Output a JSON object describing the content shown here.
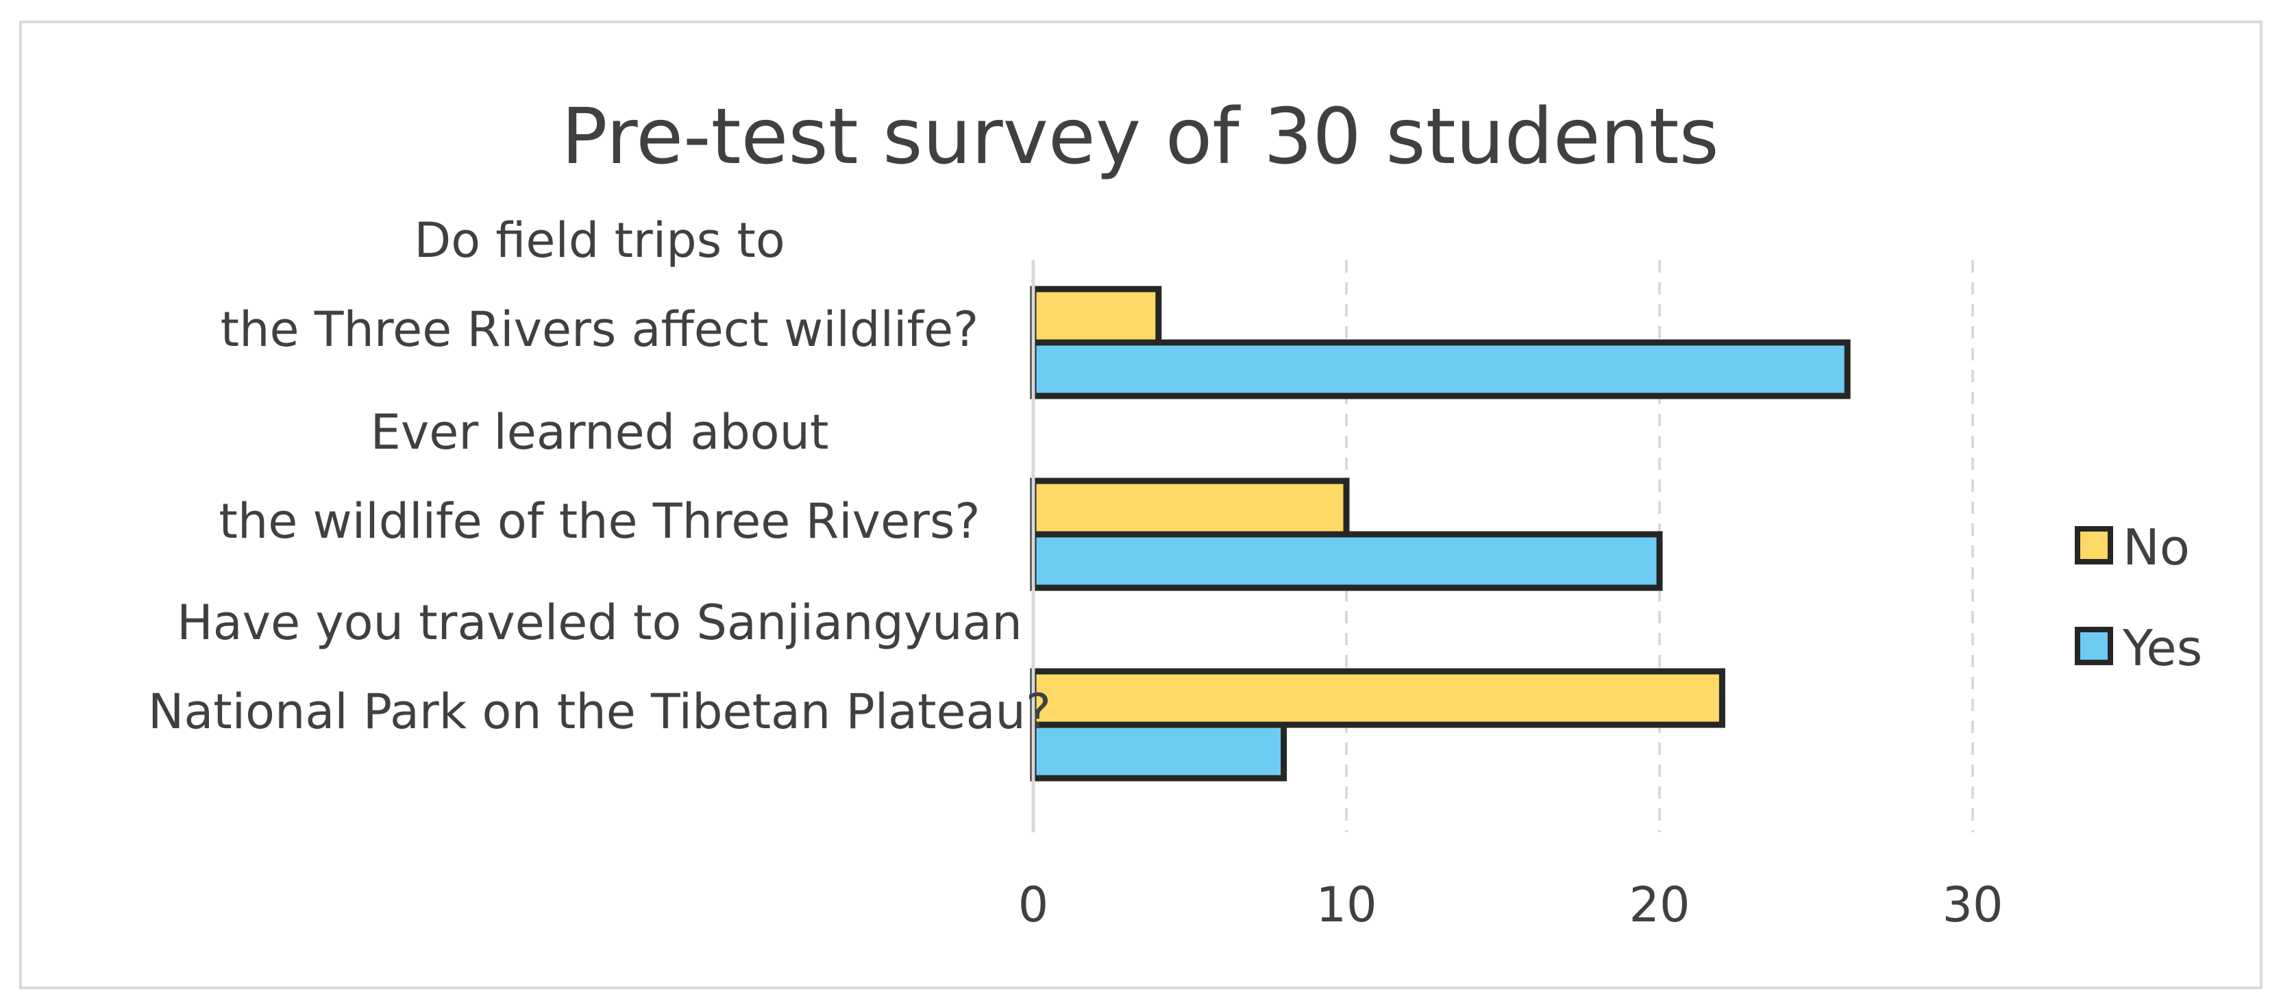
{
  "chart_data": {
    "type": "bar",
    "orientation": "horizontal",
    "title": "Pre-test survey of 30 students",
    "xlabel": "",
    "ylabel": "",
    "xlim": [
      0,
      35
    ],
    "x_ticks": [
      0,
      10,
      20,
      30
    ],
    "x_tick_labels": [
      "0",
      "10",
      "20",
      "30"
    ],
    "grid": "vertical dashed",
    "legend_position": "right",
    "categories": [
      [
        "Do field trips to",
        "the Three Rivers affect wildlife?"
      ],
      [
        "Ever learned about",
        "the wildlife of the Three Rivers?"
      ],
      [
        "Have you traveled to Sanjiangyuan",
        "National Park on the Tibetan Plateau?"
      ]
    ],
    "series": [
      {
        "name": "No",
        "color": "#FFD966",
        "values": [
          4,
          10,
          22
        ]
      },
      {
        "name": "Yes",
        "color": "#6ECBF2",
        "values": [
          26,
          20,
          8
        ]
      }
    ],
    "colors": {
      "bar_stroke": "#262626",
      "grid": "#d9d9d9",
      "axis": "#d9d9d9",
      "text": "#404040",
      "frame": "#d9d9d9"
    }
  }
}
